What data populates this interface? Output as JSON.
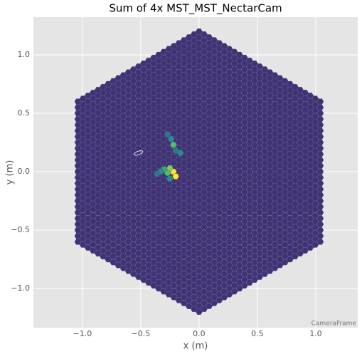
{
  "chart_data": {
    "type": "camera",
    "title": "Sum of 4x MST_MST_NectarCam",
    "xlabel": "x  (m)",
    "ylabel": "y  (m)",
    "frame_label": "CameraFrame",
    "xlim": [
      -1.42,
      1.36
    ],
    "ylim": [
      -1.335,
      1.323
    ],
    "xticks": [
      {
        "value": -1,
        "label": "−1.0"
      },
      {
        "value": -0.5,
        "label": "−0.5"
      },
      {
        "value": 0,
        "label": "0.0"
      },
      {
        "value": 0.5,
        "label": "0.5"
      },
      {
        "value": 1,
        "label": "1.0"
      }
    ],
    "yticks": [
      {
        "value": -1,
        "label": "−1.0"
      },
      {
        "value": -0.5,
        "label": "−0.5"
      },
      {
        "value": 0,
        "label": "0.0"
      },
      {
        "value": 0.5,
        "label": "0.5"
      },
      {
        "value": 1,
        "label": "1.0"
      }
    ],
    "grid": true,
    "clim": [
      0,
      10
    ],
    "background_value": 1.5,
    "pixels": [
      {
        "x": -0.22,
        "y": 0.0,
        "value": 10
      },
      {
        "x": -0.2,
        "y": -0.04,
        "value": 10
      },
      {
        "x": -0.25,
        "y": 0.03,
        "value": 8
      },
      {
        "x": -0.27,
        "y": -0.01,
        "value": 7
      },
      {
        "x": -0.3,
        "y": 0.02,
        "value": 6
      },
      {
        "x": -0.33,
        "y": 0.0,
        "value": 5
      },
      {
        "x": -0.36,
        "y": -0.02,
        "value": 4
      },
      {
        "x": -0.22,
        "y": 0.23,
        "value": 7
      },
      {
        "x": -0.24,
        "y": 0.28,
        "value": 5
      },
      {
        "x": -0.2,
        "y": 0.18,
        "value": 4
      },
      {
        "x": -0.16,
        "y": 0.16,
        "value": 5
      },
      {
        "x": -0.27,
        "y": 0.32,
        "value": 4
      },
      {
        "x": -0.25,
        "y": -0.06,
        "value": 5
      }
    ],
    "ellipse": {
      "x": -0.52,
      "y": 0.16,
      "length": 0.08,
      "width": 0.03,
      "angle": 20
    }
  }
}
